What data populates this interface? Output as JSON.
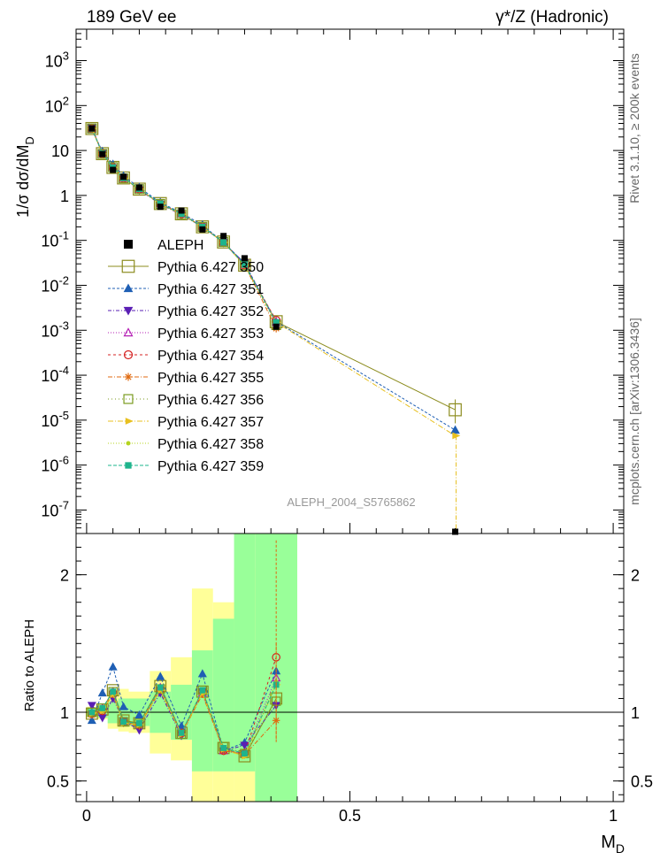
{
  "header": {
    "left": "189 GeV ee",
    "right": "γ*/Z (Hadronic)"
  },
  "side_text": {
    "rivet": "Rivet 3.1.10, ≥ 200k events",
    "mcplots": "mcplots.cern.ch [arXiv:1306.3436]"
  },
  "analysis_label": "ALEPH_2004_S5765862",
  "colors": {
    "aleph": "#000000",
    "band_outer": "#ffff99",
    "band_inner": "#99ff99"
  },
  "chart_data": [
    {
      "type": "line",
      "panel": "main",
      "ylabel": "1/σ dσ/dM_D",
      "yscale": "log",
      "xlim": [
        -0.02,
        1.02
      ],
      "ylim": [
        3e-08,
        5000
      ],
      "y_ticks": [
        {
          "v": 1000,
          "label": "10^3"
        },
        {
          "v": 100,
          "label": "10^2"
        },
        {
          "v": 10,
          "label": "10"
        },
        {
          "v": 1,
          "label": "1"
        },
        {
          "v": 0.1,
          "label": "10^-1"
        },
        {
          "v": 0.01,
          "label": "10^-2"
        },
        {
          "v": 0.001,
          "label": "10^-3"
        },
        {
          "v": 0.0001,
          "label": "10^-4"
        },
        {
          "v": 1e-05,
          "label": "10^-5"
        },
        {
          "v": 1e-06,
          "label": "10^-6"
        },
        {
          "v": 1e-07,
          "label": "10^-7"
        }
      ],
      "legend_position": "left-middle",
      "data": {
        "name": "ALEPH",
        "x": [
          0.01,
          0.03,
          0.05,
          0.07,
          0.1,
          0.14,
          0.18,
          0.22,
          0.26,
          0.3,
          0.36,
          0.7
        ],
        "y": [
          31,
          8.3,
          3.7,
          2.6,
          1.5,
          0.56,
          0.46,
          0.175,
          0.125,
          0.04,
          0.0012,
          2.5e-08
        ]
      },
      "series": [
        {
          "name": "Pythia 6.427 350",
          "color": "#8c8c1e",
          "marker": "open-square",
          "dash": "",
          "x": [
            0.01,
            0.03,
            0.05,
            0.07,
            0.1,
            0.14,
            0.18,
            0.22,
            0.26,
            0.3,
            0.36,
            0.7
          ],
          "y": [
            30.8,
            8.5,
            4.2,
            2.45,
            1.38,
            0.66,
            0.39,
            0.2,
            0.092,
            0.028,
            0.00155,
            1.7e-05
          ]
        },
        {
          "name": "Pythia 6.427 351",
          "color": "#1f5fb4",
          "marker": "triangle-up",
          "dash": "3,2",
          "x": [
            0.01,
            0.03,
            0.05,
            0.07,
            0.1,
            0.14,
            0.18,
            0.22,
            0.26,
            0.3,
            0.36,
            0.7
          ],
          "y": [
            29,
            9.5,
            4.9,
            2.7,
            1.5,
            0.7,
            0.41,
            0.22,
            0.09,
            0.031,
            0.00155,
            6e-06
          ]
        },
        {
          "name": "Pythia 6.427 352",
          "color": "#5a1fb4",
          "marker": "triangle-down",
          "dash": "4,2,1,2",
          "x": [
            0.01,
            0.03,
            0.05,
            0.07,
            0.1,
            0.14,
            0.18,
            0.22,
            0.26,
            0.3,
            0.36
          ],
          "y": [
            32.5,
            8.6,
            4.1,
            2.45,
            1.33,
            0.64,
            0.37,
            0.2,
            0.09,
            0.031,
            0.00145
          ]
        },
        {
          "name": "Pythia 6.427 353",
          "color": "#b41fb4",
          "marker": "open-triangle",
          "dash": "1,2",
          "x": [
            0.01,
            0.03,
            0.05,
            0.07,
            0.1,
            0.14,
            0.18,
            0.22,
            0.26,
            0.3,
            0.36
          ],
          "y": [
            31,
            8.6,
            4.3,
            2.4,
            1.38,
            0.66,
            0.39,
            0.2,
            0.09,
            0.028,
            0.0015
          ]
        },
        {
          "name": "Pythia 6.427 354",
          "color": "#d42020",
          "marker": "open-circle",
          "dash": "3,3",
          "x": [
            0.01,
            0.03,
            0.05,
            0.07,
            0.1,
            0.14,
            0.18,
            0.22,
            0.26,
            0.3,
            0.36
          ],
          "y": [
            30.5,
            8.4,
            4.2,
            2.4,
            1.38,
            0.65,
            0.39,
            0.2,
            0.09,
            0.028,
            0.00165
          ]
        },
        {
          "name": "Pythia 6.427 355",
          "color": "#e06a10",
          "marker": "star",
          "dash": "5,2,1,2",
          "x": [
            0.01,
            0.03,
            0.05,
            0.07,
            0.1,
            0.14,
            0.18,
            0.22,
            0.26,
            0.3,
            0.36
          ],
          "y": [
            30.5,
            8.4,
            4.2,
            2.4,
            1.38,
            0.65,
            0.39,
            0.2,
            0.09,
            0.028,
            0.0011
          ]
        },
        {
          "name": "Pythia 6.427 356",
          "color": "#7a9a1e",
          "marker": "open-square-small",
          "dash": "1,3",
          "x": [
            0.01,
            0.03,
            0.05,
            0.07,
            0.1,
            0.14,
            0.18,
            0.22,
            0.26,
            0.3,
            0.36
          ],
          "y": [
            31,
            8.4,
            4.25,
            2.4,
            1.38,
            0.65,
            0.38,
            0.2,
            0.092,
            0.028,
            0.0013
          ]
        },
        {
          "name": "Pythia 6.427 357",
          "color": "#e8c020",
          "marker": "triangle-right",
          "dash": "6,2,1,2",
          "x": [
            0.01,
            0.03,
            0.05,
            0.07,
            0.1,
            0.14,
            0.18,
            0.22,
            0.26,
            0.3,
            0.36,
            0.7
          ],
          "y": [
            31,
            8.4,
            4.2,
            2.4,
            1.38,
            0.65,
            0.38,
            0.2,
            0.09,
            0.028,
            0.0015,
            4.5e-06
          ]
        },
        {
          "name": "Pythia 6.427 358",
          "color": "#b4d41e",
          "marker": "small-dot",
          "dash": "1,2",
          "x": [
            0.01,
            0.03,
            0.05,
            0.07,
            0.1,
            0.14,
            0.18,
            0.22,
            0.26,
            0.3,
            0.36
          ],
          "y": [
            31,
            8.4,
            4.2,
            2.4,
            1.38,
            0.65,
            0.39,
            0.2,
            0.09,
            0.028,
            0.0015
          ]
        },
        {
          "name": "Pythia 6.427 359",
          "color": "#1eb48c",
          "marker": "filled-square",
          "dash": "4,2",
          "x": [
            0.01,
            0.03,
            0.05,
            0.07,
            0.1,
            0.14,
            0.18,
            0.22,
            0.26,
            0.3,
            0.36
          ],
          "y": [
            31,
            8.5,
            4.2,
            2.45,
            1.4,
            0.66,
            0.39,
            0.2,
            0.09,
            0.029,
            0.0015
          ]
        }
      ]
    },
    {
      "type": "line",
      "panel": "ratio",
      "ylabel": "Ratio to ALEPH",
      "xlabel": "M_D",
      "xlim": [
        -0.02,
        1.02
      ],
      "ylim": [
        0.35,
        2.3
      ],
      "y_ticks": [
        {
          "v": 0.5,
          "label": "0.5"
        },
        {
          "v": 1,
          "label": "1"
        },
        {
          "v": 2,
          "label": "2"
        }
      ],
      "x_ticks": [
        {
          "v": 0,
          "label": "0"
        },
        {
          "v": 0.5,
          "label": "0.5"
        },
        {
          "v": 1,
          "label": "1"
        }
      ],
      "bands": {
        "bins": [
          [
            0,
            0.02
          ],
          [
            0.02,
            0.04
          ],
          [
            0.04,
            0.06
          ],
          [
            0.06,
            0.08
          ],
          [
            0.08,
            0.12
          ],
          [
            0.12,
            0.16
          ],
          [
            0.16,
            0.2
          ],
          [
            0.2,
            0.24
          ],
          [
            0.24,
            0.28
          ],
          [
            0.28,
            0.32
          ],
          [
            0.32,
            0.4
          ]
        ],
        "outer": [
          [
            0.96,
            1.04
          ],
          [
            0.95,
            1.05
          ],
          [
            0.88,
            1.13
          ],
          [
            0.86,
            1.17
          ],
          [
            0.85,
            1.15
          ],
          [
            0.7,
            1.3
          ],
          [
            0.65,
            1.4
          ],
          [
            0.34,
            1.9
          ],
          [
            0.34,
            1.8
          ],
          [
            0.34,
            2.05
          ],
          [
            0.34,
            2.3
          ]
        ],
        "inner": [
          [
            0.97,
            1.03
          ],
          [
            0.96,
            1.04
          ],
          [
            0.92,
            1.08
          ],
          [
            0.92,
            1.1
          ],
          [
            0.9,
            1.1
          ],
          [
            0.85,
            1.15
          ],
          [
            0.8,
            1.2
          ],
          [
            0.57,
            1.45
          ],
          [
            0.57,
            1.68
          ],
          [
            0.57,
            2.3
          ],
          [
            0.34,
            2.3
          ]
        ]
      },
      "series": [
        {
          "name": "Pythia 6.427 350",
          "x": [
            0.01,
            0.03,
            0.05,
            0.07,
            0.1,
            0.14,
            0.18,
            0.22,
            0.26,
            0.3,
            0.36
          ],
          "y": [
            0.99,
            1.02,
            1.16,
            0.94,
            0.92,
            1.19,
            0.85,
            1.15,
            0.74,
            0.68,
            1.1
          ]
        },
        {
          "name": "Pythia 6.427 351",
          "x": [
            0.01,
            0.03,
            0.05,
            0.07,
            0.1,
            0.14,
            0.18,
            0.22,
            0.26,
            0.3,
            0.36
          ],
          "y": [
            0.94,
            1.14,
            1.33,
            1.04,
            0.98,
            1.26,
            0.9,
            1.28,
            0.72,
            0.78,
            1.3
          ]
        },
        {
          "name": "Pythia 6.427 352",
          "x": [
            0.01,
            0.03,
            0.05,
            0.07,
            0.1,
            0.14,
            0.18,
            0.22,
            0.26,
            0.3,
            0.36
          ],
          "y": [
            1.05,
            0.96,
            1.1,
            0.94,
            0.87,
            1.14,
            0.83,
            1.15,
            0.72,
            0.76,
            1.05
          ]
        },
        {
          "name": "Pythia 6.427 353",
          "x": [
            0.01,
            0.03,
            0.05,
            0.07,
            0.1,
            0.14,
            0.18,
            0.22,
            0.26,
            0.3,
            0.36
          ],
          "y": [
            0.99,
            1.03,
            1.15,
            0.93,
            0.91,
            1.18,
            0.85,
            1.14,
            0.72,
            0.7,
            1.25
          ]
        },
        {
          "name": "Pythia 6.427 354",
          "x": [
            0.01,
            0.03,
            0.05,
            0.07,
            0.1,
            0.14,
            0.18,
            0.22,
            0.26,
            0.3,
            0.36
          ],
          "y": [
            0.99,
            1.01,
            1.14,
            0.93,
            0.91,
            1.17,
            0.85,
            1.15,
            0.72,
            0.7,
            1.4
          ]
        },
        {
          "name": "Pythia 6.427 355",
          "x": [
            0.01,
            0.03,
            0.05,
            0.07,
            0.1,
            0.14,
            0.18,
            0.22,
            0.26,
            0.3,
            0.36
          ],
          "y": [
            0.98,
            1.01,
            1.13,
            0.92,
            0.9,
            1.16,
            0.84,
            1.13,
            0.72,
            0.69,
            0.94
          ]
        },
        {
          "name": "Pythia 6.427 356",
          "x": [
            0.01,
            0.03,
            0.05,
            0.07,
            0.1,
            0.14,
            0.18,
            0.22,
            0.26,
            0.3,
            0.36
          ],
          "y": [
            1.0,
            1.03,
            1.15,
            0.93,
            0.92,
            1.17,
            0.84,
            1.16,
            0.75,
            0.7,
            1.08
          ]
        },
        {
          "name": "Pythia 6.427 357",
          "x": [
            0.01,
            0.03,
            0.05,
            0.07,
            0.1,
            0.14,
            0.18,
            0.22,
            0.26,
            0.3,
            0.36
          ],
          "y": [
            0.99,
            1.01,
            1.13,
            0.92,
            0.91,
            1.16,
            0.84,
            1.14,
            0.73,
            0.68,
            1.2
          ]
        },
        {
          "name": "Pythia 6.427 358",
          "x": [
            0.01,
            0.03,
            0.05,
            0.07,
            0.1,
            0.14,
            0.18,
            0.22,
            0.26,
            0.3,
            0.36
          ],
          "y": [
            1.0,
            1.02,
            1.15,
            0.93,
            0.91,
            1.17,
            0.85,
            1.15,
            0.73,
            0.69,
            1.22
          ]
        },
        {
          "name": "Pythia 6.427 359",
          "x": [
            0.01,
            0.03,
            0.05,
            0.07,
            0.1,
            0.14,
            0.18,
            0.22,
            0.26,
            0.3,
            0.36
          ],
          "y": [
            1.0,
            1.03,
            1.15,
            0.93,
            0.92,
            1.18,
            0.85,
            1.16,
            0.74,
            0.7,
            1.2
          ]
        }
      ]
    }
  ]
}
